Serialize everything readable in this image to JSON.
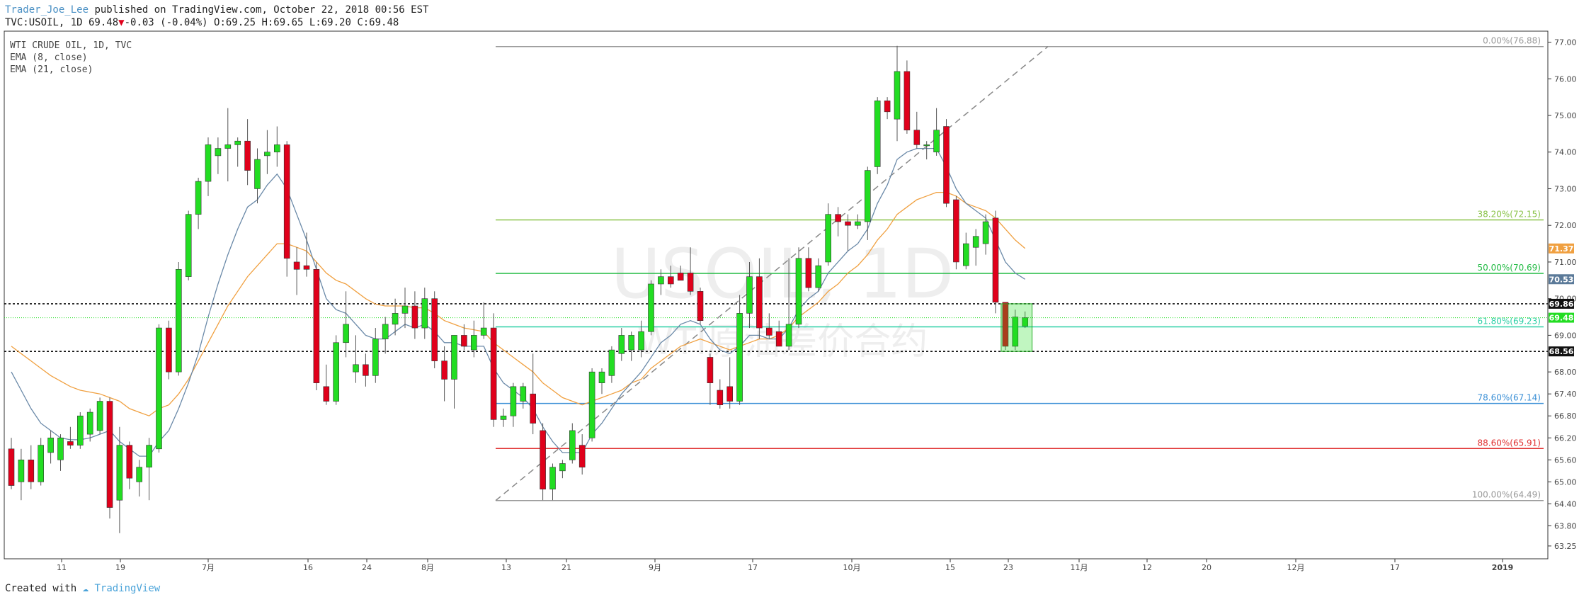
{
  "header": {
    "author": "Trader_Joe_Lee",
    "published_text": " published on TradingView.com, October 22, 2018 00:56 EST",
    "symbol_line_a": "TVC:USOIL, 1D 69.48",
    "down_marker": "▼",
    "symbol_line_b": "-0.03 (-0.04%) O:69.25 H:69.65 L:69.20 C:69.48"
  },
  "legend": {
    "title": "WTI CRUDE OIL, 1D, TVC",
    "ema_fast": "EMA (8, close)",
    "ema_slow": "EMA (21, close)"
  },
  "watermark": {
    "symbol": "USOIL, 1D",
    "subtitle": "WTI原油差价合约"
  },
  "footer": {
    "created_with": "Created with",
    "brand": "TradingView"
  },
  "colors": {
    "up": "#22dd22",
    "down": "#e0001b",
    "ema_fast": "#6a89a8",
    "ema_slow": "#f0a040",
    "fib_grey": "#999999",
    "fib_lime": "#8bc34a",
    "fib_green": "#22bb44",
    "fib_teal": "#2bcfa6",
    "fib_blue": "#3a8fd6",
    "fib_red": "#e03030"
  },
  "chart_data": {
    "type": "candlestick",
    "title": "WTI CRUDE OIL, 1D, TVC",
    "ylim": [
      62.9,
      77.3
    ],
    "y_ticks": [
      "77.00",
      "76.00",
      "75.00",
      "74.00",
      "73.00",
      "72.00",
      "71.00",
      "70.00",
      "69.00",
      "68.00",
      "67.40",
      "66.80",
      "66.20",
      "65.60",
      "65.00",
      "64.40",
      "63.80",
      "63.25"
    ],
    "x_ticks": [
      "11",
      "19",
      "7月",
      "16",
      "24",
      "8月",
      "13",
      "21",
      "9月",
      "17",
      "10月",
      "15",
      "23",
      "11月",
      "12",
      "20",
      "12月",
      "17",
      "2019"
    ],
    "price_badges": [
      {
        "label": "71.37",
        "value": 71.37,
        "color": "#f0a040"
      },
      {
        "label": "70.53",
        "value": 70.53,
        "color": "#5b7a99"
      },
      {
        "label": "69.86",
        "value": 69.86,
        "color": "#111111"
      },
      {
        "label": "69.48",
        "value": 69.48,
        "color": "#22dd22"
      },
      {
        "label": "68.56",
        "value": 68.56,
        "color": "#111111"
      }
    ],
    "horizontal_dotted_lines": [
      69.86,
      68.56
    ],
    "last_price": 69.48,
    "fib_levels": [
      {
        "label": "0.00%(76.88)",
        "price": 76.88,
        "color": "#999999"
      },
      {
        "label": "38.20%(72.15)",
        "price": 72.15,
        "color": "#8bc34a"
      },
      {
        "label": "50.00%(70.69)",
        "price": 70.69,
        "color": "#22bb44"
      },
      {
        "label": "61.80%(69.23)",
        "price": 69.23,
        "color": "#2bcfa6"
      },
      {
        "label": "78.60%(67.14)",
        "price": 67.14,
        "color": "#3a8fd6"
      },
      {
        "label": "88.60%(65.91)",
        "price": 65.91,
        "color": "#e03030"
      },
      {
        "label": "100.00%(64.49)",
        "price": 64.49,
        "color": "#999999"
      }
    ],
    "candles": [
      {
        "o": 65.9,
        "h": 66.2,
        "l": 64.8,
        "c": 64.9
      },
      {
        "o": 65.0,
        "h": 65.9,
        "l": 64.5,
        "c": 65.6
      },
      {
        "o": 65.6,
        "h": 66.0,
        "l": 64.8,
        "c": 65.0
      },
      {
        "o": 65.0,
        "h": 66.2,
        "l": 64.9,
        "c": 66.0
      },
      {
        "o": 65.8,
        "h": 66.4,
        "l": 65.5,
        "c": 66.2
      },
      {
        "o": 65.6,
        "h": 66.3,
        "l": 65.3,
        "c": 66.2
      },
      {
        "o": 66.1,
        "h": 66.5,
        "l": 65.9,
        "c": 66.0
      },
      {
        "o": 66.0,
        "h": 66.9,
        "l": 65.9,
        "c": 66.8
      },
      {
        "o": 66.3,
        "h": 67.0,
        "l": 66.1,
        "c": 66.9
      },
      {
        "o": 66.4,
        "h": 67.3,
        "l": 66.3,
        "c": 67.2
      },
      {
        "o": 67.2,
        "h": 67.3,
        "l": 64.0,
        "c": 64.3
      },
      {
        "o": 64.5,
        "h": 66.5,
        "l": 63.6,
        "c": 66.0
      },
      {
        "o": 66.0,
        "h": 66.1,
        "l": 64.8,
        "c": 65.1
      },
      {
        "o": 65.0,
        "h": 65.6,
        "l": 64.6,
        "c": 65.4
      },
      {
        "o": 65.4,
        "h": 66.2,
        "l": 64.5,
        "c": 66.0
      },
      {
        "o": 65.9,
        "h": 69.3,
        "l": 65.8,
        "c": 69.2
      },
      {
        "o": 69.2,
        "h": 69.4,
        "l": 67.8,
        "c": 68.0
      },
      {
        "o": 68.0,
        "h": 71.0,
        "l": 67.9,
        "c": 70.8
      },
      {
        "o": 70.6,
        "h": 72.4,
        "l": 70.5,
        "c": 72.3
      },
      {
        "o": 72.3,
        "h": 73.3,
        "l": 71.9,
        "c": 73.2
      },
      {
        "o": 73.2,
        "h": 74.4,
        "l": 72.8,
        "c": 74.2
      },
      {
        "o": 73.9,
        "h": 74.4,
        "l": 73.4,
        "c": 74.1
      },
      {
        "o": 74.1,
        "h": 75.2,
        "l": 73.2,
        "c": 74.2
      },
      {
        "o": 74.2,
        "h": 74.4,
        "l": 73.6,
        "c": 74.3
      },
      {
        "o": 74.3,
        "h": 74.9,
        "l": 73.1,
        "c": 73.5
      },
      {
        "o": 73.0,
        "h": 74.1,
        "l": 72.6,
        "c": 73.8
      },
      {
        "o": 73.9,
        "h": 74.6,
        "l": 73.4,
        "c": 74.0
      },
      {
        "o": 74.0,
        "h": 74.7,
        "l": 73.6,
        "c": 74.2
      },
      {
        "o": 74.2,
        "h": 74.3,
        "l": 70.6,
        "c": 71.1
      },
      {
        "o": 71.0,
        "h": 71.4,
        "l": 70.1,
        "c": 70.8
      },
      {
        "o": 70.9,
        "h": 71.8,
        "l": 70.6,
        "c": 70.8
      },
      {
        "o": 70.8,
        "h": 71.0,
        "l": 67.5,
        "c": 67.7
      },
      {
        "o": 67.6,
        "h": 68.2,
        "l": 67.1,
        "c": 67.2
      },
      {
        "o": 67.2,
        "h": 69.0,
        "l": 67.1,
        "c": 68.8
      },
      {
        "o": 68.8,
        "h": 70.2,
        "l": 68.4,
        "c": 69.3
      },
      {
        "o": 68.0,
        "h": 69.0,
        "l": 67.7,
        "c": 68.2
      },
      {
        "o": 68.2,
        "h": 68.5,
        "l": 67.6,
        "c": 67.9
      },
      {
        "o": 67.9,
        "h": 69.2,
        "l": 67.7,
        "c": 68.9
      },
      {
        "o": 68.9,
        "h": 69.5,
        "l": 68.5,
        "c": 69.3
      },
      {
        "o": 69.3,
        "h": 70.0,
        "l": 69.0,
        "c": 69.6
      },
      {
        "o": 69.6,
        "h": 70.3,
        "l": 69.2,
        "c": 69.8
      },
      {
        "o": 69.8,
        "h": 70.2,
        "l": 68.9,
        "c": 69.2
      },
      {
        "o": 69.2,
        "h": 70.3,
        "l": 68.9,
        "c": 70.0
      },
      {
        "o": 70.0,
        "h": 70.2,
        "l": 68.1,
        "c": 68.3
      },
      {
        "o": 68.3,
        "h": 68.7,
        "l": 67.2,
        "c": 67.8
      },
      {
        "o": 67.8,
        "h": 69.0,
        "l": 67.0,
        "c": 69.0
      },
      {
        "o": 69.0,
        "h": 69.3,
        "l": 68.6,
        "c": 68.7
      },
      {
        "o": 68.6,
        "h": 69.4,
        "l": 68.4,
        "c": 69.0
      },
      {
        "o": 69.0,
        "h": 69.9,
        "l": 68.9,
        "c": 69.2
      },
      {
        "o": 69.2,
        "h": 69.6,
        "l": 66.5,
        "c": 66.7
      },
      {
        "o": 66.7,
        "h": 67.0,
        "l": 66.5,
        "c": 66.8
      },
      {
        "o": 66.8,
        "h": 67.7,
        "l": 66.5,
        "c": 67.6
      },
      {
        "o": 67.2,
        "h": 67.7,
        "l": 67.0,
        "c": 67.6
      },
      {
        "o": 67.4,
        "h": 68.5,
        "l": 66.3,
        "c": 66.6
      },
      {
        "o": 66.4,
        "h": 66.6,
        "l": 64.5,
        "c": 64.8
      },
      {
        "o": 64.8,
        "h": 65.5,
        "l": 64.5,
        "c": 65.4
      },
      {
        "o": 65.3,
        "h": 65.6,
        "l": 65.1,
        "c": 65.5
      },
      {
        "o": 65.6,
        "h": 66.6,
        "l": 65.5,
        "c": 66.4
      },
      {
        "o": 66.0,
        "h": 66.3,
        "l": 65.2,
        "c": 65.4
      },
      {
        "o": 66.2,
        "h": 68.1,
        "l": 66.1,
        "c": 68.0
      },
      {
        "o": 67.7,
        "h": 68.1,
        "l": 67.4,
        "c": 68.0
      },
      {
        "o": 67.9,
        "h": 68.7,
        "l": 67.7,
        "c": 68.6
      },
      {
        "o": 68.5,
        "h": 69.2,
        "l": 68.3,
        "c": 69.0
      },
      {
        "o": 68.6,
        "h": 69.1,
        "l": 68.3,
        "c": 69.0
      },
      {
        "o": 68.6,
        "h": 69.4,
        "l": 68.4,
        "c": 69.1
      },
      {
        "o": 69.1,
        "h": 70.5,
        "l": 69.0,
        "c": 70.4
      },
      {
        "o": 70.4,
        "h": 70.8,
        "l": 70.1,
        "c": 70.6
      },
      {
        "o": 70.6,
        "h": 70.9,
        "l": 70.3,
        "c": 70.4
      },
      {
        "o": 70.7,
        "h": 70.9,
        "l": 70.5,
        "c": 70.5
      },
      {
        "o": 70.7,
        "h": 71.4,
        "l": 70.1,
        "c": 70.2
      },
      {
        "o": 70.2,
        "h": 70.3,
        "l": 69.3,
        "c": 69.4
      },
      {
        "o": 68.4,
        "h": 68.5,
        "l": 67.1,
        "c": 67.7
      },
      {
        "o": 67.5,
        "h": 67.8,
        "l": 67.0,
        "c": 67.1
      },
      {
        "o": 67.6,
        "h": 68.4,
        "l": 67.0,
        "c": 67.2
      },
      {
        "o": 67.2,
        "h": 70.1,
        "l": 67.1,
        "c": 69.6
      },
      {
        "o": 69.6,
        "h": 71.0,
        "l": 69.2,
        "c": 70.6
      },
      {
        "o": 70.6,
        "h": 71.1,
        "l": 68.9,
        "c": 69.2
      },
      {
        "o": 69.2,
        "h": 69.6,
        "l": 68.9,
        "c": 69.0
      },
      {
        "o": 69.1,
        "h": 69.4,
        "l": 68.7,
        "c": 68.7
      },
      {
        "o": 68.7,
        "h": 71.1,
        "l": 68.6,
        "c": 69.3
      },
      {
        "o": 69.3,
        "h": 71.4,
        "l": 69.2,
        "c": 71.1
      },
      {
        "o": 71.1,
        "h": 71.4,
        "l": 70.2,
        "c": 70.3
      },
      {
        "o": 70.3,
        "h": 71.1,
        "l": 70.2,
        "c": 70.9
      },
      {
        "o": 71.0,
        "h": 72.6,
        "l": 70.9,
        "c": 72.3
      },
      {
        "o": 72.3,
        "h": 72.5,
        "l": 71.7,
        "c": 72.1
      },
      {
        "o": 72.1,
        "h": 72.3,
        "l": 71.3,
        "c": 72.0
      },
      {
        "o": 72.0,
        "h": 72.3,
        "l": 71.9,
        "c": 72.1
      },
      {
        "o": 72.1,
        "h": 73.6,
        "l": 71.6,
        "c": 73.5
      },
      {
        "o": 73.6,
        "h": 75.5,
        "l": 73.4,
        "c": 75.4
      },
      {
        "o": 75.4,
        "h": 75.5,
        "l": 74.9,
        "c": 75.1
      },
      {
        "o": 74.9,
        "h": 76.9,
        "l": 74.3,
        "c": 76.2
      },
      {
        "o": 76.2,
        "h": 76.5,
        "l": 74.5,
        "c": 74.6
      },
      {
        "o": 74.6,
        "h": 75.1,
        "l": 74.1,
        "c": 74.2
      },
      {
        "o": 74.2,
        "h": 74.3,
        "l": 73.8,
        "c": 74.2
      },
      {
        "o": 74.0,
        "h": 75.2,
        "l": 73.9,
        "c": 74.6
      },
      {
        "o": 74.7,
        "h": 74.9,
        "l": 72.5,
        "c": 72.6
      },
      {
        "o": 72.7,
        "h": 72.8,
        "l": 70.8,
        "c": 71.0
      },
      {
        "o": 70.9,
        "h": 71.8,
        "l": 70.8,
        "c": 71.5
      },
      {
        "o": 71.4,
        "h": 71.9,
        "l": 70.9,
        "c": 71.7
      },
      {
        "o": 71.5,
        "h": 72.3,
        "l": 71.2,
        "c": 72.1
      },
      {
        "o": 72.2,
        "h": 72.4,
        "l": 69.6,
        "c": 69.9
      },
      {
        "o": 69.9,
        "h": 69.9,
        "l": 68.6,
        "c": 68.7
      },
      {
        "o": 68.7,
        "h": 69.7,
        "l": 68.6,
        "c": 69.5
      },
      {
        "o": 69.25,
        "h": 69.65,
        "l": 69.2,
        "c": 69.48
      }
    ],
    "ema_fast": [
      68.0,
      67.5,
      67.0,
      66.6,
      66.4,
      66.2,
      66.15,
      66.15,
      66.2,
      66.3,
      66.4,
      66.1,
      65.9,
      65.7,
      65.7,
      66.1,
      66.4,
      67.0,
      67.7,
      68.5,
      69.5,
      70.4,
      71.2,
      71.9,
      72.5,
      72.7,
      73.1,
      73.4,
      73.0,
      72.3,
      71.6,
      70.8,
      70.0,
      69.7,
      69.6,
      69.3,
      69.0,
      68.9,
      68.9,
      69.1,
      69.3,
      69.2,
      69.3,
      69.1,
      68.8,
      68.8,
      68.7,
      68.7,
      68.7,
      68.1,
      67.7,
      67.5,
      67.3,
      67.0,
      66.5,
      66.1,
      65.8,
      65.8,
      65.8,
      66.3,
      66.6,
      67.0,
      67.4,
      67.7,
      68.0,
      68.4,
      68.8,
      69.0,
      69.3,
      69.4,
      69.3,
      68.9,
      68.6,
      68.5,
      68.7,
      69.0,
      69.0,
      68.9,
      68.9,
      69.2,
      69.7,
      70.0,
      70.2,
      70.7,
      71.0,
      71.3,
      71.5,
      71.9,
      72.6,
      73.1,
      73.8,
      74.0,
      74.1,
      74.1,
      74.1,
      73.6,
      73.0,
      72.6,
      72.4,
      72.2,
      71.6,
      71.0,
      70.7,
      70.53
    ],
    "ema_slow": [
      68.7,
      68.5,
      68.3,
      68.1,
      67.9,
      67.75,
      67.6,
      67.5,
      67.45,
      67.4,
      67.3,
      67.2,
      67.0,
      66.9,
      66.8,
      67.0,
      67.1,
      67.4,
      67.8,
      68.3,
      68.8,
      69.3,
      69.8,
      70.2,
      70.6,
      70.9,
      71.2,
      71.5,
      71.5,
      71.4,
      71.3,
      71.0,
      70.7,
      70.5,
      70.4,
      70.2,
      70.0,
      69.85,
      69.8,
      69.8,
      69.8,
      69.75,
      69.75,
      69.6,
      69.4,
      69.3,
      69.2,
      69.15,
      69.1,
      68.8,
      68.6,
      68.4,
      68.2,
      68.0,
      67.7,
      67.5,
      67.3,
      67.2,
      67.1,
      67.2,
      67.3,
      67.4,
      67.5,
      67.7,
      67.8,
      68.1,
      68.3,
      68.5,
      68.7,
      68.8,
      68.9,
      68.8,
      68.7,
      68.6,
      68.7,
      68.8,
      68.9,
      68.9,
      69.0,
      69.2,
      69.5,
      69.7,
      69.9,
      70.2,
      70.4,
      70.7,
      70.9,
      71.2,
      71.6,
      71.9,
      72.3,
      72.5,
      72.7,
      72.8,
      72.9,
      72.9,
      72.8,
      72.6,
      72.5,
      72.4,
      72.2,
      71.9,
      71.6,
      71.37
    ]
  }
}
